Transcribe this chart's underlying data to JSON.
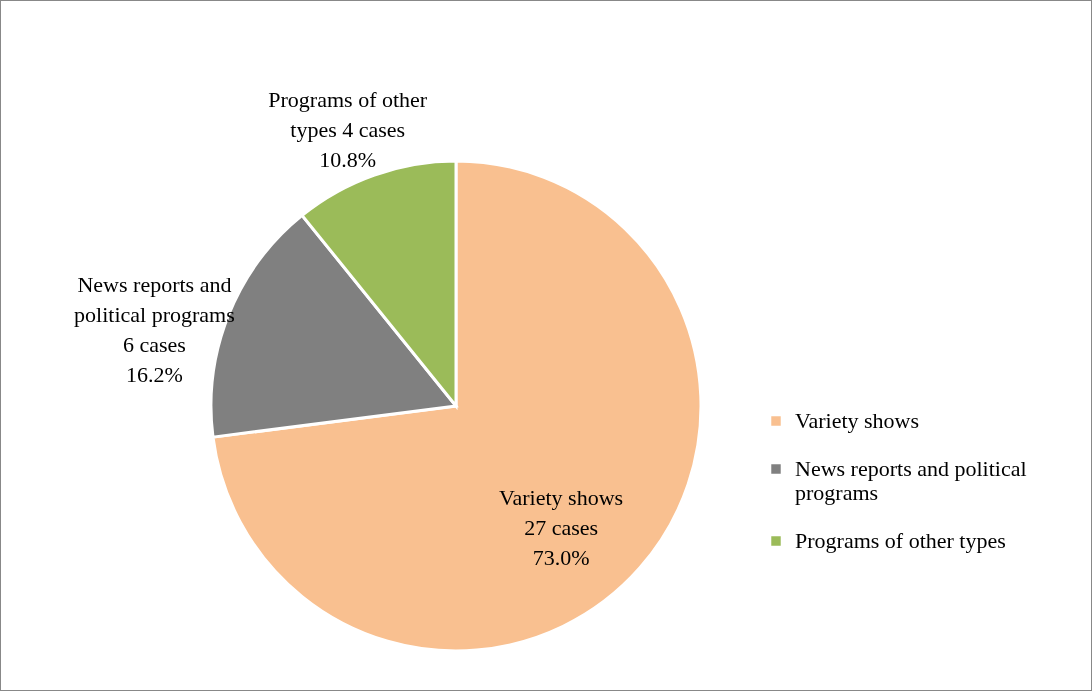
{
  "chart_data": {
    "type": "pie",
    "categories": [
      "Variety shows",
      "News reports and political programs",
      "Programs of other types"
    ],
    "values": [
      27,
      6,
      4
    ],
    "colors": [
      "#f9c090",
      "#808080",
      "#9bbb59"
    ],
    "value_labels": [
      "27 cases\n73.0%",
      "6 cases\n16.2%",
      "4 cases\n10.8%"
    ],
    "legend": "right"
  }
}
